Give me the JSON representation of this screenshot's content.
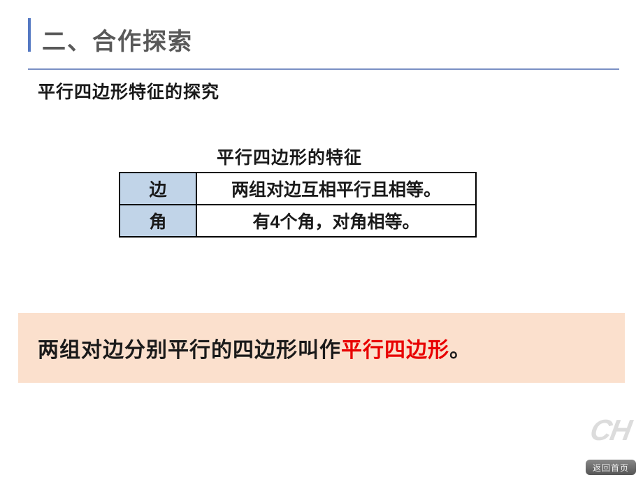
{
  "slide": {
    "section_title": "二、合作探索",
    "subtitle": "平行四边形特征的探究",
    "table_caption": "平行四边形的特征",
    "accent_color": "#5478c2",
    "title_color": "#595959",
    "table_header_bg": "#c1d4e8",
    "table": {
      "rows": [
        {
          "label": "边",
          "value": "两组对边互相平行且相等。"
        },
        {
          "label": "角",
          "value": "有4个角，对角相等。"
        }
      ]
    },
    "definition": {
      "bg_color": "#fbe0cd",
      "prefix": "两组对边分别平行的四边形叫作",
      "highlight": "平行四边形",
      "highlight_color": "#e80000",
      "suffix": "。"
    },
    "watermark": "CH",
    "back_button": "返回首页"
  }
}
